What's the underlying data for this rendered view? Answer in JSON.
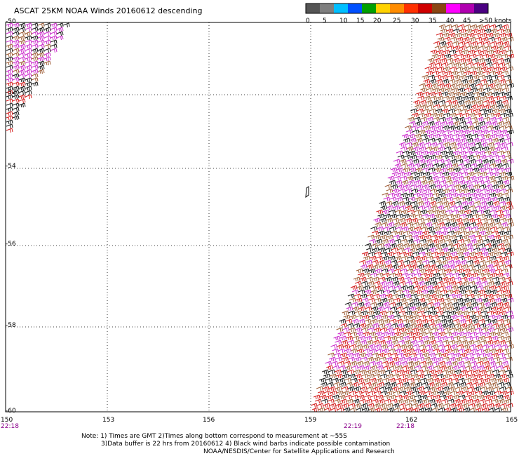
{
  "title": "ASCAT 25KM NOAA Winds 20160612 descending",
  "colorbar": {
    "labels": [
      "0",
      "5",
      "10",
      "15",
      "20",
      "25",
      "30",
      "35",
      "40",
      "45",
      ">50 knots"
    ],
    "colors": [
      "#555555",
      "#7f7f7f",
      "#00bfff",
      "#0050ff",
      "#00a000",
      "#ffd200",
      "#ff8c00",
      "#ff3000",
      "#d00000",
      "#8b4513",
      "#ff00ff",
      "#b000b0",
      "#4b0082"
    ]
  },
  "axes": {
    "lat_labels": [
      "-50",
      "-52",
      "-54",
      "-56",
      "-58",
      "-60"
    ],
    "lon_labels": [
      "150",
      "153",
      "156",
      "159",
      "162",
      "165"
    ],
    "time_labels": [
      "22:18",
      "22:19",
      "22:18"
    ]
  },
  "notes": {
    "line1": "Note: 1) Times are GMT 2)Times along bottom correspond to measurement at ~55S",
    "line2": "3)Data buffer is 22 hrs from 20160612 4) Black wind barbs indicate possible contamination",
    "line3": "NOAA/NESDIS/Center for Satellite Applications and Research"
  },
  "legend_colors": {
    "barb_red": "#d42020",
    "barb_brown": "#a0603a",
    "barb_magenta": "#cc30cc",
    "barb_black": "#1a1a1a",
    "time_label": "#8b008b"
  }
}
